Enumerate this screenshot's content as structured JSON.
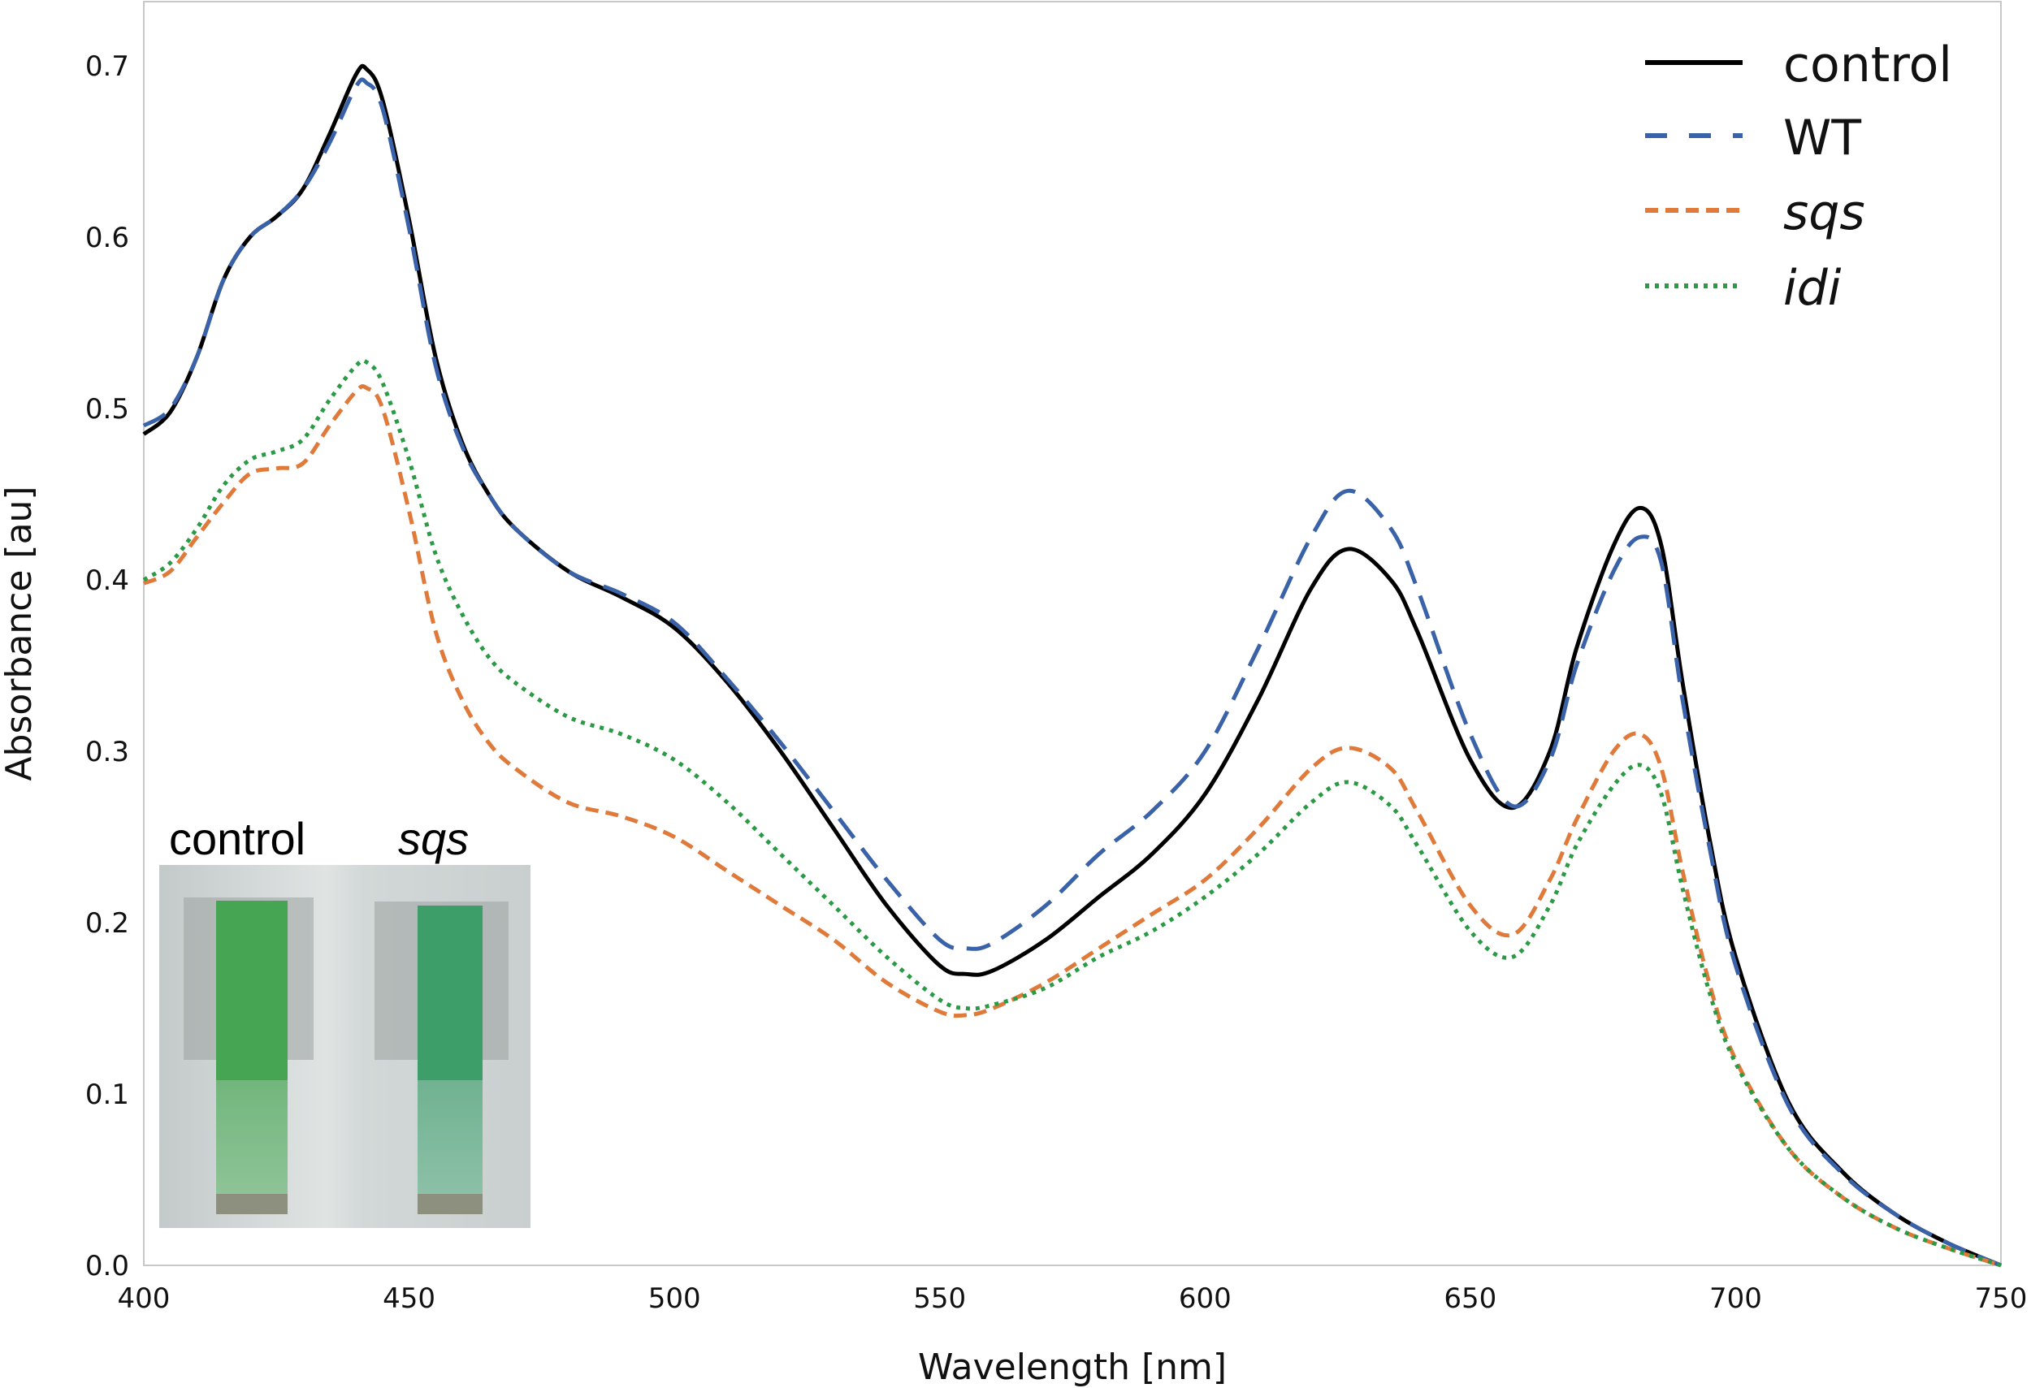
{
  "chart_data": {
    "type": "line",
    "title": "",
    "xlabel": "Wavelength [nm]",
    "ylabel": "Absorbance [au]",
    "xlim": [
      400,
      750
    ],
    "ylim": [
      0.0,
      0.72
    ],
    "xticks": [
      400,
      450,
      500,
      550,
      600,
      650,
      700,
      750
    ],
    "xtick_labels": [
      "400",
      "450",
      "500",
      "550",
      "600",
      "650",
      "700",
      "750"
    ],
    "yticks": [
      0.0,
      0.1,
      0.2,
      0.3,
      0.4,
      0.5,
      0.6,
      0.7
    ],
    "ytick_labels": [
      "0.0",
      "0.1",
      "0.2",
      "0.3",
      "0.4",
      "0.5",
      "0.6",
      "0.7"
    ],
    "grid": false,
    "legend_position": "upper right",
    "x": [
      400,
      405,
      410,
      415,
      420,
      425,
      430,
      435,
      440,
      442,
      445,
      450,
      455,
      460,
      465,
      470,
      480,
      490,
      500,
      510,
      520,
      530,
      540,
      550,
      555,
      560,
      570,
      580,
      590,
      600,
      610,
      620,
      627,
      635,
      640,
      650,
      658,
      665,
      670,
      677,
      682,
      686,
      690,
      695,
      700,
      710,
      720,
      730,
      740,
      750
    ],
    "series": [
      {
        "name": "control",
        "style": "solid",
        "color": "#000000",
        "values": [
          0.485,
          0.498,
          0.53,
          0.575,
          0.6,
          0.612,
          0.628,
          0.66,
          0.695,
          0.698,
          0.68,
          0.61,
          0.53,
          0.48,
          0.45,
          0.43,
          0.405,
          0.39,
          0.372,
          0.34,
          0.3,
          0.255,
          0.21,
          0.175,
          0.17,
          0.172,
          0.19,
          0.215,
          0.24,
          0.275,
          0.33,
          0.395,
          0.418,
          0.4,
          0.37,
          0.295,
          0.267,
          0.3,
          0.36,
          0.42,
          0.442,
          0.42,
          0.34,
          0.25,
          0.18,
          0.095,
          0.055,
          0.03,
          0.013,
          0.0
        ]
      },
      {
        "name": "WT",
        "style": "dashed",
        "color": "#3a62a8",
        "values": [
          0.49,
          0.5,
          0.53,
          0.575,
          0.6,
          0.612,
          0.628,
          0.655,
          0.688,
          0.69,
          0.675,
          0.605,
          0.525,
          0.478,
          0.45,
          0.43,
          0.405,
          0.392,
          0.375,
          0.342,
          0.305,
          0.265,
          0.225,
          0.19,
          0.185,
          0.188,
          0.21,
          0.24,
          0.265,
          0.3,
          0.36,
          0.425,
          0.452,
          0.43,
          0.395,
          0.31,
          0.268,
          0.295,
          0.35,
          0.405,
          0.425,
          0.41,
          0.33,
          0.245,
          0.175,
          0.093,
          0.054,
          0.03,
          0.013,
          0.0
        ]
      },
      {
        "name": "sqs",
        "style": "dashed-short",
        "color": "#e07a3a",
        "values": [
          0.398,
          0.405,
          0.425,
          0.445,
          0.462,
          0.465,
          0.468,
          0.49,
          0.51,
          0.512,
          0.5,
          0.44,
          0.37,
          0.33,
          0.305,
          0.29,
          0.27,
          0.262,
          0.25,
          0.23,
          0.21,
          0.19,
          0.165,
          0.148,
          0.146,
          0.15,
          0.165,
          0.185,
          0.205,
          0.225,
          0.255,
          0.29,
          0.302,
          0.29,
          0.265,
          0.21,
          0.193,
          0.225,
          0.26,
          0.3,
          0.31,
          0.29,
          0.23,
          0.165,
          0.12,
          0.068,
          0.04,
          0.022,
          0.01,
          0.0
        ]
      },
      {
        "name": "idi",
        "style": "dotted",
        "color": "#2a9a45",
        "values": [
          0.4,
          0.41,
          0.43,
          0.455,
          0.47,
          0.475,
          0.482,
          0.505,
          0.525,
          0.527,
          0.515,
          0.47,
          0.415,
          0.38,
          0.355,
          0.34,
          0.32,
          0.31,
          0.295,
          0.27,
          0.24,
          0.21,
          0.18,
          0.155,
          0.15,
          0.152,
          0.162,
          0.18,
          0.195,
          0.215,
          0.24,
          0.27,
          0.282,
          0.268,
          0.245,
          0.195,
          0.18,
          0.21,
          0.245,
          0.28,
          0.292,
          0.275,
          0.22,
          0.16,
          0.118,
          0.068,
          0.04,
          0.022,
          0.01,
          0.0
        ]
      }
    ],
    "annotations": [
      "inset photo of cuvettes labeled 'control' and 'sqs'"
    ]
  },
  "legend": {
    "items": [
      {
        "label": "control",
        "italic": false
      },
      {
        "label": "WT",
        "italic": false
      },
      {
        "label": "sqs",
        "italic": true
      },
      {
        "label": "idi",
        "italic": true
      }
    ]
  },
  "inset": {
    "left_label": "control",
    "right_label": "sqs"
  }
}
